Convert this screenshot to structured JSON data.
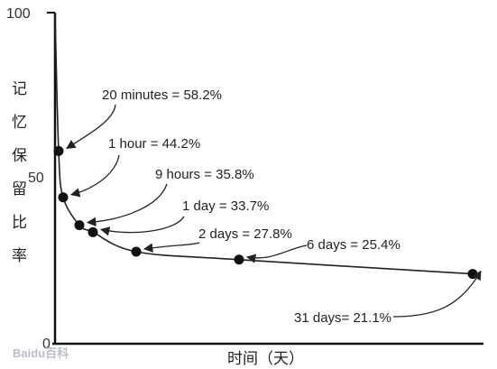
{
  "chart_data": {
    "type": "line",
    "title": "",
    "xlabel": "时间（天）",
    "ylabel": "记忆保留比率",
    "ylim": [
      0,
      100
    ],
    "yticks": [
      "0",
      "50",
      "100"
    ],
    "x_unit": "days",
    "series": [
      {
        "points": [
          {
            "x": 0,
            "y": 100
          },
          {
            "x": 0.0139,
            "y": 58.2
          },
          {
            "x": 0.0417,
            "y": 44.2
          },
          {
            "x": 0.375,
            "y": 35.8
          },
          {
            "x": 1,
            "y": 33.7
          },
          {
            "x": 2,
            "y": 27.8
          },
          {
            "x": 6,
            "y": 25.4
          },
          {
            "x": 31,
            "y": 21.1
          }
        ]
      }
    ],
    "annotations": [
      {
        "text": "20 minutes = 58.2%",
        "x": 0.0139,
        "y": 58.2
      },
      {
        "text": "1 hour = 44.2%",
        "x": 0.0417,
        "y": 44.2
      },
      {
        "text": "9 hours = 35.8%",
        "x": 0.375,
        "y": 35.8
      },
      {
        "text": "1 day = 33.7%",
        "x": 1,
        "y": 33.7
      },
      {
        "text": "2 days = 27.8%",
        "x": 2,
        "y": 27.8
      },
      {
        "text": "6 days = 25.4%",
        "x": 6,
        "y": 25.4
      },
      {
        "text": "31 days= 21.1%",
        "x": 31,
        "y": 21.1
      }
    ],
    "grid": false,
    "legend": "none",
    "colors": {
      "line": "#222222",
      "marker": "#111111",
      "axis": "#111111"
    }
  },
  "watermark": "Baidu百科"
}
